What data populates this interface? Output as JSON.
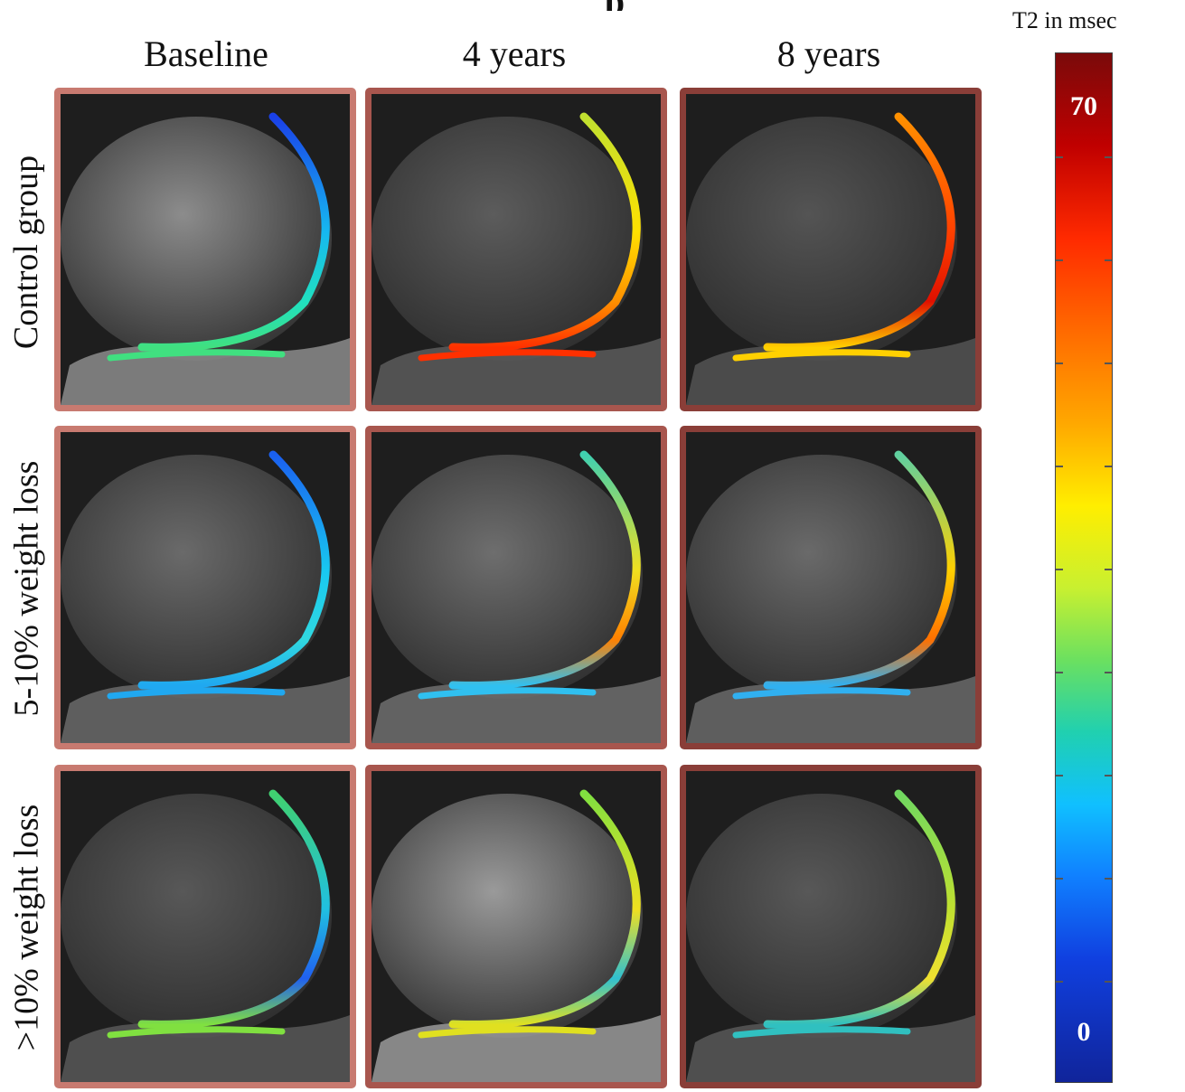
{
  "figure": {
    "title_fragment": "p",
    "columns": [
      "Baseline",
      "4 years",
      "8 years"
    ],
    "rows": [
      "Control group",
      "5-10% weight loss",
      ">10% weight loss"
    ]
  },
  "colorbar": {
    "title": "T2 in msec",
    "max_label": "70",
    "min_label": "0",
    "top_color": "#7a0a0a",
    "bottom_color": "#10249a"
  },
  "colors": {
    "frame_light": "#c87a70",
    "frame_mid": "#a8564e",
    "frame_dark": "#8a3e38"
  }
}
